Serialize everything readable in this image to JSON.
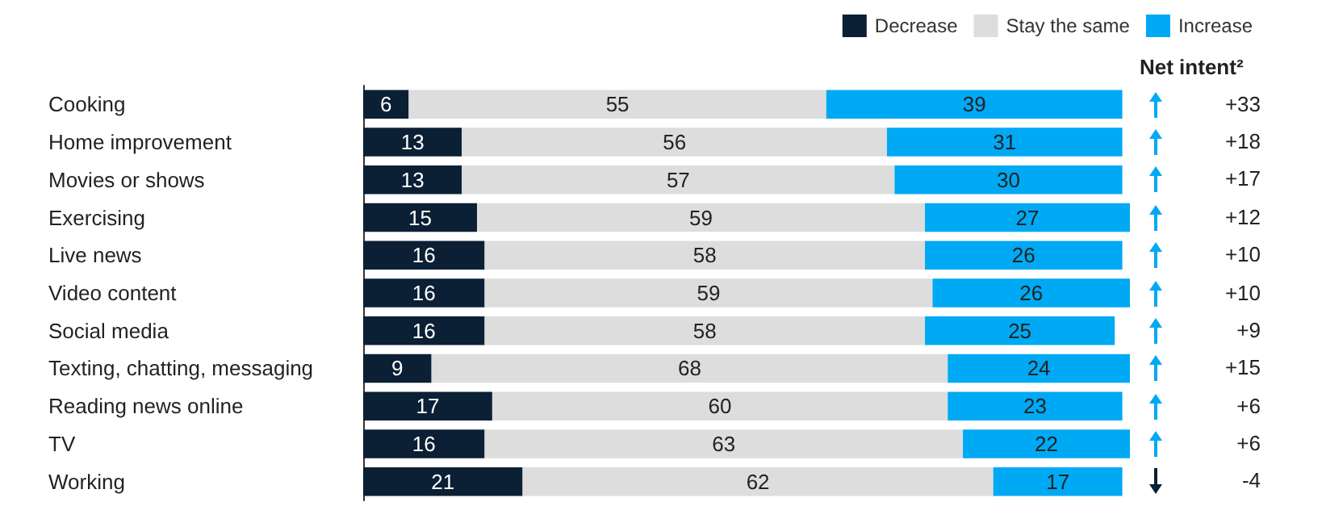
{
  "chart_data": {
    "type": "bar",
    "orientation": "horizontal",
    "stacked": true,
    "data_labels": true,
    "legend": "top right",
    "tick_labels": "y",
    "grid": false,
    "categories": [
      "Cooking",
      "Home improvement",
      "Movies or shows",
      "Exercising",
      "Live news",
      "Video content",
      "Social media",
      "Texting, chatting, messaging",
      "Reading news online",
      "TV",
      "Working"
    ],
    "xlim": [
      0,
      101
    ],
    "series": [
      {
        "name": "Decrease",
        "color": "#0b1f35",
        "values": [
          6,
          13,
          13,
          15,
          16,
          16,
          16,
          9,
          17,
          16,
          21
        ]
      },
      {
        "name": "Stay the same",
        "color": "#dddddd",
        "values": [
          55,
          56,
          57,
          59,
          58,
          59,
          58,
          68,
          60,
          63,
          62
        ]
      },
      {
        "name": "Increase",
        "color": "#00a9f4",
        "values": [
          39,
          31,
          30,
          27,
          26,
          26,
          25,
          24,
          23,
          22,
          17
        ]
      }
    ],
    "annotations": [
      "Net intent²",
      "+33",
      "+18",
      "+17",
      "+12",
      "+10",
      "+10",
      "+9",
      "+15",
      "+6",
      "+6",
      "-4"
    ]
  }
}
